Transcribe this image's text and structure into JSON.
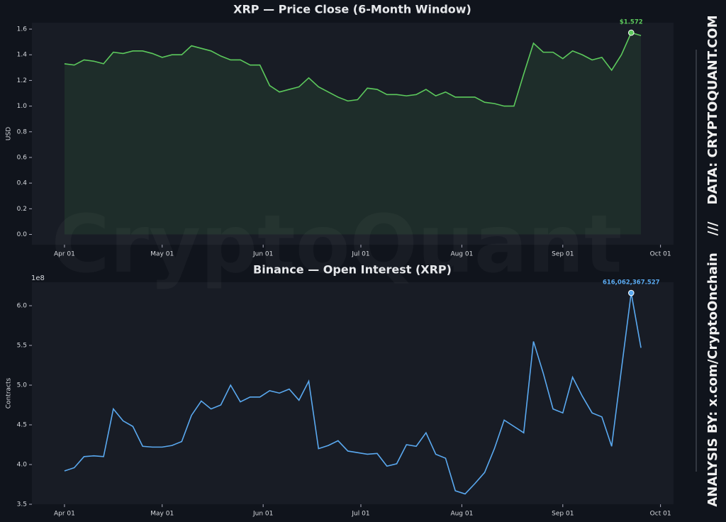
{
  "page": {
    "watermark": "CryptoQuant",
    "credit": "ANALYSIS BY: x.com/CryptoOnchain",
    "separator": "///",
    "source": "DATA: CRYPTOQUANT.COM"
  },
  "chart_data": [
    {
      "type": "line",
      "title": "XRP — Price Close (6-Month Window)",
      "y_label": "USD",
      "fill_area": true,
      "x": [
        "Apr 01",
        "Apr 04",
        "Apr 07",
        "Apr 10",
        "Apr 13",
        "Apr 16",
        "Apr 19",
        "Apr 22",
        "Apr 25",
        "Apr 28",
        "May 01",
        "May 04",
        "May 07",
        "May 10",
        "May 13",
        "May 16",
        "May 19",
        "May 22",
        "May 25",
        "May 28",
        "May 31",
        "Jun 03",
        "Jun 06",
        "Jun 09",
        "Jun 12",
        "Jun 15",
        "Jun 18",
        "Jun 21",
        "Jun 24",
        "Jun 27",
        "Jun 30",
        "Jul 03",
        "Jul 06",
        "Jul 09",
        "Jul 12",
        "Jul 15",
        "Jul 18",
        "Jul 21",
        "Jul 24",
        "Jul 27",
        "Jul 30",
        "Aug 02",
        "Aug 05",
        "Aug 08",
        "Aug 11",
        "Aug 14",
        "Aug 17",
        "Aug 20",
        "Aug 23",
        "Aug 26",
        "Aug 29",
        "Sep 01",
        "Sep 04",
        "Sep 07",
        "Sep 10",
        "Sep 13",
        "Sep 16",
        "Sep 19",
        "Sep 22",
        "Sep 25"
      ],
      "series": [
        {
          "name": "Price Close",
          "color": "#5cc95c",
          "values": [
            1.33,
            1.32,
            1.36,
            1.35,
            1.33,
            1.42,
            1.41,
            1.43,
            1.43,
            1.41,
            1.38,
            1.4,
            1.4,
            1.47,
            1.45,
            1.43,
            1.39,
            1.36,
            1.36,
            1.32,
            1.32,
            1.16,
            1.11,
            1.13,
            1.15,
            1.22,
            1.15,
            1.11,
            1.07,
            1.04,
            1.05,
            1.14,
            1.13,
            1.09,
            1.09,
            1.08,
            1.09,
            1.13,
            1.08,
            1.11,
            1.07,
            1.07,
            1.07,
            1.03,
            1.02,
            1.0,
            1.0,
            1.25,
            1.49,
            1.42,
            1.42,
            1.37,
            1.43,
            1.4,
            1.36,
            1.38,
            1.28,
            1.4,
            1.572,
            1.55
          ]
        }
      ],
      "annotations": [
        {
          "x": "Sep 22",
          "y": 1.572,
          "label": "$1.572"
        }
      ],
      "xlim": [
        "Mar 22",
        "Oct 05"
      ],
      "xticks": [
        "Apr 01",
        "May 01",
        "Jun 01",
        "Jul 01",
        "Aug 01",
        "Sep 01",
        "Oct 01"
      ],
      "ylim": [
        -0.08,
        1.65
      ],
      "yticks": [
        {
          "value": 0,
          "label": "0.0"
        },
        {
          "value": 0.2,
          "label": "0.2"
        },
        {
          "value": 0.4,
          "label": "0.4"
        },
        {
          "value": 0.6,
          "label": "0.6"
        },
        {
          "value": 0.8,
          "label": "0.8"
        },
        {
          "value": 1,
          "label": "1.0"
        },
        {
          "value": 1.2,
          "label": "1.2"
        },
        {
          "value": 1.4,
          "label": "1.4"
        },
        {
          "value": 1.6,
          "label": "1.6"
        }
      ]
    },
    {
      "type": "line",
      "title": "Binance — Open Interest (XRP)",
      "y_label": "Contracts",
      "y_offset_label": "1e8",
      "fill_area": false,
      "x": [
        "Apr 01",
        "Apr 04",
        "Apr 07",
        "Apr 10",
        "Apr 13",
        "Apr 16",
        "Apr 19",
        "Apr 22",
        "Apr 25",
        "Apr 28",
        "May 01",
        "May 04",
        "May 07",
        "May 10",
        "May 13",
        "May 16",
        "May 19",
        "May 22",
        "May 25",
        "May 28",
        "May 31",
        "Jun 03",
        "Jun 06",
        "Jun 09",
        "Jun 12",
        "Jun 15",
        "Jun 18",
        "Jun 21",
        "Jun 24",
        "Jun 27",
        "Jun 30",
        "Jul 03",
        "Jul 06",
        "Jul 09",
        "Jul 12",
        "Jul 15",
        "Jul 18",
        "Jul 21",
        "Jul 24",
        "Jul 27",
        "Jul 30",
        "Aug 02",
        "Aug 05",
        "Aug 08",
        "Aug 11",
        "Aug 14",
        "Aug 17",
        "Aug 20",
        "Aug 23",
        "Aug 26",
        "Aug 29",
        "Sep 01",
        "Sep 04",
        "Sep 07",
        "Sep 10",
        "Sep 13",
        "Sep 16",
        "Sep 19",
        "Sep 22",
        "Sep 25"
      ],
      "series": [
        {
          "name": "Open Interest",
          "color": "#5aa9f0",
          "values": [
            392000000,
            396000000,
            410000000,
            411000000,
            410000000,
            470000000,
            455000000,
            448000000,
            423000000,
            422000000,
            422000000,
            424000000,
            429000000,
            462000000,
            480000000,
            470000000,
            475000000,
            500000000,
            479000000,
            485000000,
            485000000,
            493000000,
            490000000,
            495000000,
            481000000,
            505000000,
            420000000,
            424000000,
            430000000,
            417000000,
            415000000,
            413000000,
            414000000,
            398000000,
            401000000,
            425000000,
            423000000,
            440000000,
            413000000,
            408000000,
            367000000,
            363000000,
            376000000,
            390000000,
            420000000,
            456000000,
            448000000,
            440000000,
            555000000,
            515000000,
            470000000,
            465000000,
            510000000,
            486000000,
            465000000,
            460000000,
            423000000,
            520000000,
            616062367.527,
            547000000
          ]
        }
      ],
      "annotations": [
        {
          "x": "Sep 22",
          "y": 616062367.527,
          "label": "616,062,367.527"
        }
      ],
      "xlim": [
        "Mar 22",
        "Oct 05"
      ],
      "xticks": [
        "Apr 01",
        "May 01",
        "Jun 01",
        "Jul 01",
        "Aug 01",
        "Sep 01",
        "Oct 01"
      ],
      "ylim": [
        350000000,
        629500000
      ],
      "yticks": [
        {
          "value": 350000000,
          "label": "3.5"
        },
        {
          "value": 400000000,
          "label": "4.0"
        },
        {
          "value": 450000000,
          "label": "4.5"
        },
        {
          "value": 500000000,
          "label": "5.0"
        },
        {
          "value": 550000000,
          "label": "5.5"
        },
        {
          "value": 600000000,
          "label": "6.0"
        }
      ]
    }
  ]
}
